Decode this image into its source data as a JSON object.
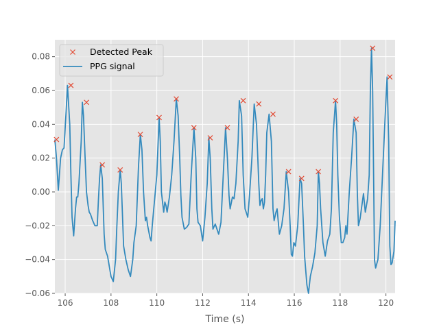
{
  "chart_data": {
    "type": "line",
    "title": "",
    "xlabel": "Time (s)",
    "ylabel": "",
    "xlim": [
      105.55,
      120.4
    ],
    "ylim": [
      -0.06,
      0.09
    ],
    "xticks": [
      106,
      108,
      110,
      112,
      114,
      116,
      118,
      120
    ],
    "yticks": [
      -0.06,
      -0.04,
      -0.02,
      0.0,
      0.02,
      0.04,
      0.06,
      0.08
    ],
    "ytick_labels": [
      "−0.06",
      "−0.04",
      "−0.02",
      "0.00",
      "0.02",
      "0.04",
      "0.06",
      "0.08"
    ],
    "grid": true,
    "legend_position": "top-left",
    "colors": {
      "signal": "#348abd",
      "peak": "#e24a33",
      "background": "#e5e5e5",
      "grid": "#ffffff"
    },
    "series": [
      {
        "name": "PPG signal",
        "kind": "line",
        "x": [
          105.55,
          105.62,
          105.7,
          105.8,
          105.88,
          105.95,
          106.05,
          106.1,
          106.2,
          106.25,
          106.3,
          106.37,
          106.45,
          106.5,
          106.55,
          106.6,
          106.7,
          106.75,
          106.8,
          106.87,
          106.93,
          107.0,
          107.05,
          107.1,
          107.2,
          107.3,
          107.4,
          107.45,
          107.5,
          107.55,
          107.62,
          107.7,
          107.75,
          107.85,
          108.0,
          108.1,
          108.2,
          108.25,
          108.32,
          108.4,
          108.45,
          108.55,
          108.65,
          108.75,
          108.85,
          108.95,
          109.0,
          109.1,
          109.2,
          109.28,
          109.35,
          109.42,
          109.5,
          109.55,
          109.6,
          109.7,
          109.75,
          109.8,
          109.9,
          110.0,
          110.1,
          110.15,
          110.2,
          110.3,
          110.35,
          110.4,
          110.45,
          110.55,
          110.65,
          110.75,
          110.85,
          110.93,
          111.0,
          111.05,
          111.1,
          111.2,
          111.3,
          111.4,
          111.5,
          111.62,
          111.7,
          111.75,
          111.8,
          111.9,
          112.0,
          112.1,
          112.2,
          112.27,
          112.33,
          112.4,
          112.45,
          112.55,
          112.6,
          112.7,
          112.8,
          112.9,
          113.0,
          113.08,
          113.15,
          113.2,
          113.3,
          113.37,
          113.45,
          113.55,
          113.6,
          113.7,
          113.77,
          113.85,
          113.9,
          113.97,
          114.0,
          114.05,
          114.15,
          114.25,
          114.35,
          114.45,
          114.5,
          114.55,
          114.6,
          114.65,
          114.7,
          114.75,
          114.8,
          114.9,
          115.0,
          115.07,
          115.12,
          115.2,
          115.25,
          115.35,
          115.45,
          115.55,
          115.65,
          115.75,
          115.82,
          115.87,
          115.92,
          115.98,
          116.05,
          116.15,
          116.25,
          116.32,
          116.4,
          116.45,
          116.55,
          116.62,
          116.7,
          116.8,
          116.9,
          117.0,
          117.05,
          117.1,
          117.15,
          117.25,
          117.35,
          117.45,
          117.55,
          117.62,
          117.7,
          117.8,
          117.85,
          117.9,
          117.97,
          118.05,
          118.12,
          118.2,
          118.25,
          118.3,
          118.4,
          118.5,
          118.6,
          118.7,
          118.75,
          118.8,
          118.87,
          118.95,
          119.02,
          119.1,
          119.2,
          119.27,
          119.32,
          119.37,
          119.42,
          119.47,
          119.5,
          119.55,
          119.65,
          119.75,
          119.85,
          119.95,
          120.05,
          120.12,
          120.17,
          120.22,
          120.27,
          120.35,
          120.4
        ],
        "y": [
          0.031,
          0.02,
          0.001,
          0.02,
          0.025,
          0.026,
          0.05,
          0.063,
          0.04,
          0.01,
          -0.015,
          -0.026,
          -0.01,
          -0.003,
          -0.003,
          0.005,
          0.03,
          0.053,
          0.045,
          0.02,
          0.0,
          -0.008,
          -0.012,
          -0.013,
          -0.017,
          -0.02,
          -0.02,
          -0.005,
          0.008,
          0.016,
          0.008,
          -0.025,
          -0.034,
          -0.038,
          -0.05,
          -0.053,
          -0.04,
          -0.022,
          0.0,
          0.013,
          0.005,
          -0.032,
          -0.04,
          -0.046,
          -0.05,
          -0.04,
          -0.03,
          -0.02,
          0.015,
          0.034,
          0.025,
          0.0,
          -0.017,
          -0.015,
          -0.02,
          -0.027,
          -0.029,
          -0.02,
          -0.005,
          0.01,
          0.044,
          0.03,
          0.0,
          -0.012,
          -0.006,
          -0.008,
          -0.012,
          -0.003,
          0.01,
          0.03,
          0.055,
          0.045,
          0.02,
          -0.002,
          -0.015,
          -0.022,
          -0.021,
          -0.019,
          0.01,
          0.038,
          0.02,
          -0.01,
          -0.018,
          -0.02,
          -0.029,
          -0.015,
          0.005,
          0.032,
          0.02,
          -0.01,
          -0.022,
          -0.019,
          -0.021,
          -0.025,
          -0.018,
          0.01,
          0.038,
          0.02,
          -0.002,
          -0.01,
          -0.003,
          -0.004,
          0.005,
          0.03,
          0.054,
          0.045,
          0.01,
          -0.01,
          -0.012,
          -0.015,
          -0.01,
          -0.001,
          0.02,
          0.052,
          0.04,
          0.005,
          -0.008,
          -0.005,
          -0.004,
          -0.01,
          -0.006,
          0.01,
          0.035,
          0.046,
          0.03,
          -0.01,
          -0.017,
          -0.012,
          -0.01,
          -0.025,
          -0.02,
          -0.01,
          0.012,
          0.0,
          -0.02,
          -0.037,
          -0.038,
          -0.03,
          -0.032,
          -0.02,
          0.008,
          0.005,
          -0.02,
          -0.038,
          -0.055,
          -0.06,
          -0.05,
          -0.044,
          -0.036,
          -0.02,
          0.012,
          0.005,
          -0.01,
          -0.03,
          -0.038,
          -0.029,
          -0.025,
          -0.01,
          0.035,
          0.054,
          0.04,
          0.01,
          -0.015,
          -0.03,
          -0.03,
          -0.027,
          -0.02,
          -0.025,
          0.0,
          0.02,
          0.043,
          0.035,
          0.0,
          -0.02,
          -0.016,
          -0.008,
          -0.001,
          -0.012,
          -0.004,
          0.01,
          0.06,
          0.085,
          0.06,
          0.0,
          -0.04,
          -0.045,
          -0.04,
          -0.02,
          0.01,
          0.04,
          0.068,
          0.03,
          -0.032,
          -0.043,
          -0.042,
          -0.035,
          -0.017
        ]
      },
      {
        "name": "Detected Peak",
        "kind": "scatter",
        "marker": "x",
        "x": [
          105.62,
          106.25,
          106.93,
          107.62,
          108.4,
          109.28,
          110.1,
          110.85,
          111.62,
          112.33,
          113.08,
          113.77,
          114.45,
          115.07,
          115.75,
          116.32,
          117.05,
          117.8,
          118.7,
          119.42,
          120.17
        ],
        "y": [
          0.031,
          0.063,
          0.053,
          0.016,
          0.013,
          0.034,
          0.044,
          0.055,
          0.038,
          0.032,
          0.038,
          0.054,
          0.052,
          0.046,
          0.012,
          0.008,
          0.012,
          0.054,
          0.043,
          0.085,
          0.068
        ]
      }
    ]
  }
}
